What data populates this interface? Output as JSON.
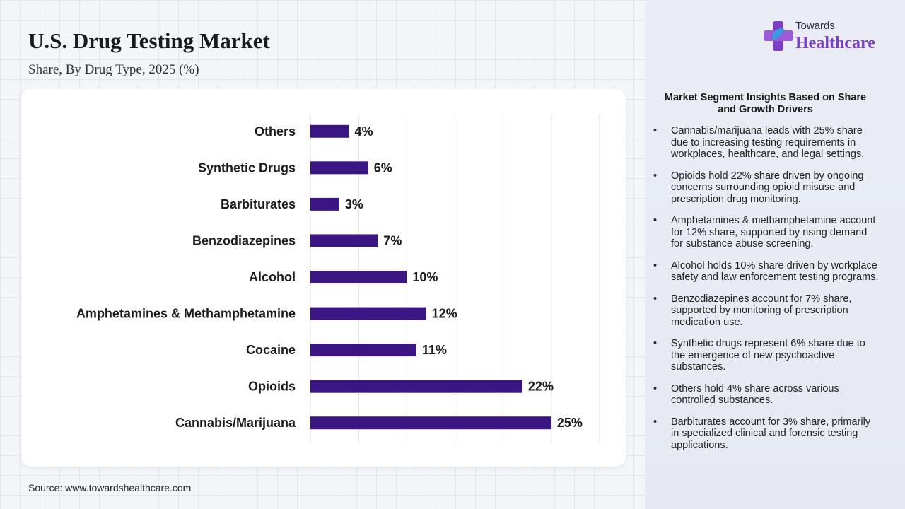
{
  "header": {
    "title": "U.S. Drug Testing Market",
    "subtitle": "Share, By Drug Type, 2025 (%)"
  },
  "logo": {
    "line1": "Towards",
    "line2": "Healthcare",
    "icon": "medical-cross-icon"
  },
  "source": "Source: www.towardshealthcare.com",
  "colors": {
    "bar": "#3b1683",
    "logo_purple": "#7b3fc4",
    "logo_blue": "#2aa7e3"
  },
  "chart_data": {
    "type": "bar",
    "orientation": "horizontal",
    "title": "U.S. Drug Testing Market",
    "subtitle": "Share, By Drug Type, 2025 (%)",
    "xlabel": "",
    "ylabel": "",
    "unit": "%",
    "xlim": [
      0,
      30
    ],
    "grid": true,
    "categories": [
      "Others",
      "Synthetic Drugs",
      "Barbiturates",
      "Benzodiazepines",
      "Alcohol",
      "Amphetamines & Methamphetamine",
      "Cocaine",
      "Opioids",
      "Cannabis/Marijuana"
    ],
    "values": [
      4,
      6,
      3,
      7,
      10,
      12,
      11,
      22,
      25
    ],
    "data_labels": [
      "4%",
      "6%",
      "3%",
      "7%",
      "10%",
      "12%",
      "11%",
      "22%",
      "25%"
    ]
  },
  "insights": {
    "title": "Market Segment Insights Based on Share and Growth Drivers",
    "bullet": "•",
    "items": [
      "Cannabis/marijuana leads with 25% share due to increasing testing requirements in workplaces, healthcare, and legal settings.",
      "Opioids hold 22% share driven by ongoing concerns surrounding opioid misuse and prescription drug monitoring.",
      "Amphetamines & methamphetamine account for 12% share, supported by rising demand for substance abuse screening.",
      "Alcohol holds 10% share driven by workplace safety and law enforcement testing programs.",
      "Benzodiazepines account for 7% share, supported by monitoring of prescription medication use.",
      "Synthetic drugs represent 6% share due to the emergence of new psychoactive substances.",
      "Others hold 4% share across various controlled substances.",
      "Barbiturates account for 3% share, primarily in specialized clinical and forensic testing applications."
    ]
  }
}
